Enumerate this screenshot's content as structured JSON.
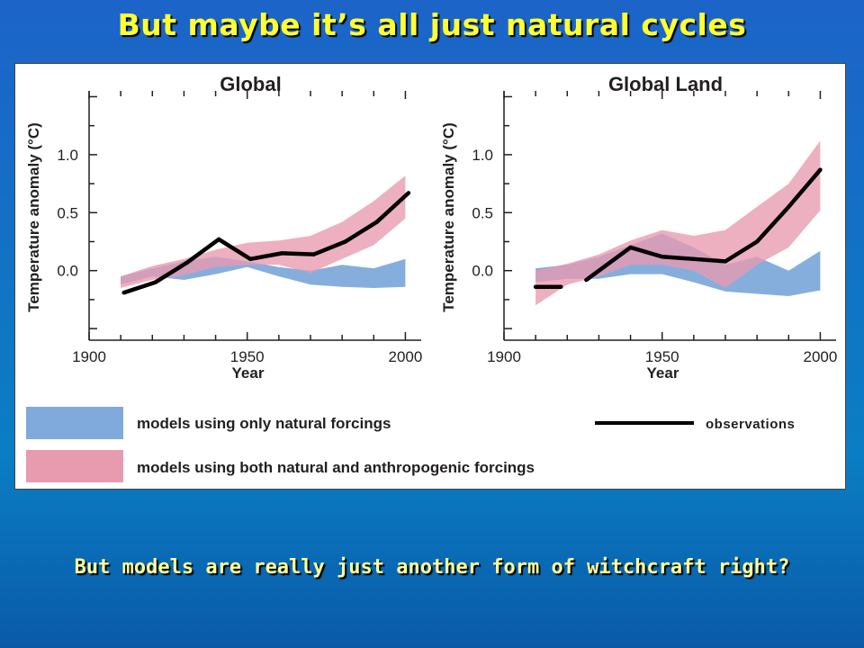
{
  "slide": {
    "title": "But maybe it’s all just natural cycles",
    "footer": "But models are really just another form of witchcraft right?"
  },
  "legend": {
    "natural": "models using only natural forcings",
    "both": "models using both natural and anthropogenic forcings",
    "observations": "observations"
  },
  "colors": {
    "natural_band": "#7faadb",
    "both_band": "#e89aae",
    "observations": "#000000"
  },
  "chart_data": [
    {
      "type": "area",
      "title": "Global",
      "xlabel": "Year",
      "ylabel": "Temperature anomaly (°C)",
      "xlim": [
        1900,
        2005
      ],
      "ylim": [
        -0.6,
        1.55
      ],
      "xticks": [
        "1900",
        "1950",
        "2000"
      ],
      "yticks": [
        "0.0",
        "0.5",
        "1.0"
      ],
      "x": [
        1910,
        1920,
        1930,
        1940,
        1950,
        1960,
        1970,
        1980,
        1990,
        2000
      ],
      "series": [
        {
          "key": "natural",
          "lower": [
            -0.12,
            -0.05,
            -0.08,
            -0.03,
            0.03,
            -0.05,
            -0.12,
            -0.14,
            -0.15,
            -0.14
          ],
          "upper": [
            -0.05,
            0.02,
            0.08,
            0.12,
            0.08,
            0.03,
            0.0,
            0.05,
            0.02,
            0.1
          ]
        },
        {
          "key": "both",
          "lower": [
            -0.15,
            -0.08,
            -0.04,
            0.03,
            0.05,
            0.05,
            -0.02,
            0.1,
            0.22,
            0.45
          ],
          "upper": [
            -0.05,
            0.04,
            0.1,
            0.18,
            0.24,
            0.26,
            0.3,
            0.42,
            0.6,
            0.82
          ]
        },
        {
          "key": "observations",
          "x": [
            1911,
            1921,
            1931,
            1941,
            1951,
            1961,
            1971,
            1981,
            1991,
            2001
          ],
          "values": [
            -0.19,
            -0.1,
            0.07,
            0.27,
            0.1,
            0.15,
            0.14,
            0.25,
            0.42,
            0.67
          ],
          "dashed_between": []
        }
      ]
    },
    {
      "type": "area",
      "title": "Global Land",
      "xlabel": "Year",
      "ylabel": "Temperature anomaly (°C)",
      "xlim": [
        1900,
        2005
      ],
      "ylim": [
        -0.6,
        1.55
      ],
      "xticks": [
        "1900",
        "1950",
        "2000"
      ],
      "yticks": [
        "0.0",
        "0.5",
        "1.0"
      ],
      "x": [
        1910,
        1920,
        1930,
        1940,
        1950,
        1960,
        1970,
        1980,
        1990,
        2000
      ],
      "series": [
        {
          "key": "natural",
          "lower": [
            -0.1,
            -0.07,
            -0.07,
            -0.03,
            -0.03,
            -0.1,
            -0.18,
            -0.2,
            -0.22,
            -0.17
          ],
          "upper": [
            0.02,
            0.05,
            0.12,
            0.22,
            0.32,
            0.2,
            0.05,
            0.12,
            0.0,
            0.17
          ]
        },
        {
          "key": "both",
          "lower": [
            -0.3,
            -0.12,
            -0.05,
            0.05,
            0.05,
            0.0,
            -0.15,
            0.05,
            0.2,
            0.52
          ],
          "upper": [
            0.0,
            0.06,
            0.14,
            0.26,
            0.35,
            0.3,
            0.35,
            0.55,
            0.75,
            1.12
          ]
        },
        {
          "key": "observations",
          "x": [
            1910,
            1918,
            1926,
            1940,
            1950,
            1960,
            1970,
            1980,
            1990,
            2000
          ],
          "values": [
            -0.14,
            -0.14,
            -0.08,
            0.2,
            0.12,
            0.1,
            0.08,
            0.25,
            0.55,
            0.87
          ],
          "dashed_between": [
            1918,
            1926
          ]
        }
      ]
    }
  ]
}
